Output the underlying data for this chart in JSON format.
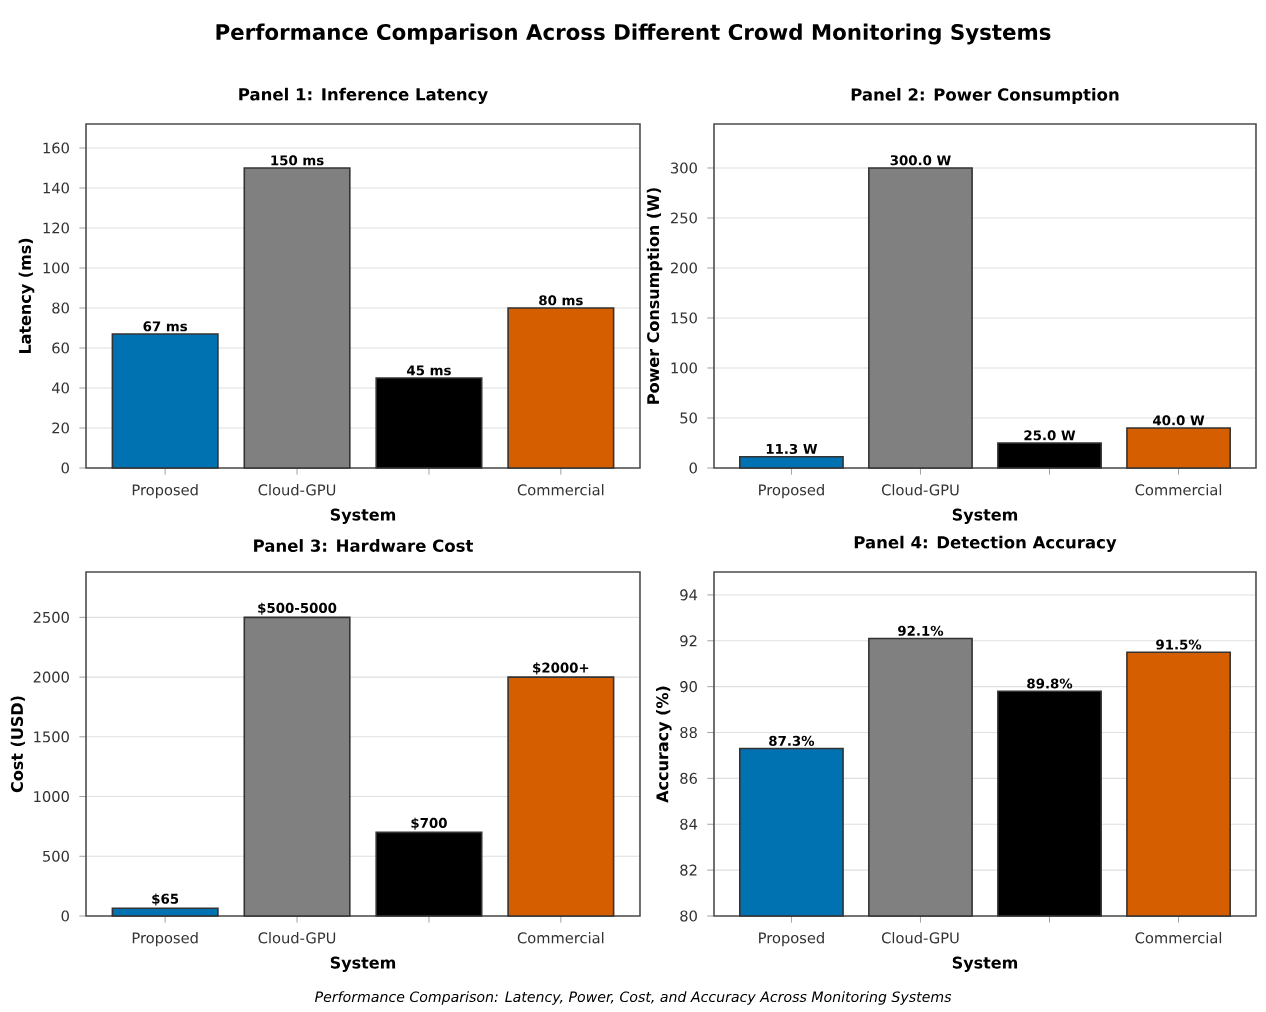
{
  "chart_data": [
    {
      "type": "bar",
      "title": "Panel 1: Inference Latency",
      "xlabel": "System",
      "ylabel": "Latency (ms)",
      "annotations": [
        "Performance Comparison Across Different Crowd Monitoring Systems"
      ],
      "categories": [
        "Proposed",
        "Cloud-GPU",
        null,
        "Commercial"
      ],
      "values": [
        67,
        150,
        45,
        80
      ],
      "colors": [
        "#0072b2",
        "#808080",
        "#000000",
        "#d55e00"
      ],
      "value_labels": [
        "67 ms",
        "150 ms",
        "45 ms",
        "80 ms"
      ],
      "ylim": [
        0,
        172
      ],
      "yticks": [
        0,
        20,
        40,
        60,
        80,
        100,
        120,
        140,
        160
      ],
      "grid": "y"
    },
    {
      "type": "bar",
      "title": "Panel 2: Power Consumption",
      "xlabel": "System",
      "ylabel": "Power Consumption (W)",
      "categories": [
        "Proposed",
        "Cloud-GPU",
        null,
        "Commercial"
      ],
      "values": [
        11.3,
        300,
        25,
        40
      ],
      "colors": [
        "#0072b2",
        "#808080",
        "#000000",
        "#d55e00"
      ],
      "value_labels": [
        "11.3 W",
        "300.0 W",
        "25.0 W",
        "40.0 W"
      ],
      "ylim": [
        0,
        344
      ],
      "yticks": [
        0,
        50,
        100,
        150,
        200,
        250,
        300
      ],
      "grid": "y"
    },
    {
      "type": "bar",
      "title": "Panel 3: Hardware Cost",
      "xlabel": "System",
      "ylabel": "Cost (USD)",
      "categories": [
        "Proposed",
        "Cloud-GPU",
        null,
        "Commercial"
      ],
      "values": [
        65,
        2500,
        700,
        2000
      ],
      "colors": [
        "#0072b2",
        "#808080",
        "#000000",
        "#d55e00"
      ],
      "value_labels": [
        "$65",
        "$500-5000",
        "$700",
        "$2000+"
      ],
      "ylim": [
        0,
        2880
      ],
      "yticks": [
        0,
        500,
        1000,
        1500,
        2000,
        2500
      ],
      "grid": "y"
    },
    {
      "type": "bar",
      "title": "Panel 4: Detection Accuracy",
      "xlabel": "System",
      "ylabel": "Accuracy (%)",
      "annotations": [
        "Performance Comparison: Latency, Power, Cost, and Accuracy Across Monitoring Systems"
      ],
      "categories": [
        "Proposed",
        "Cloud-GPU",
        null,
        "Commercial"
      ],
      "values": [
        87.3,
        92.1,
        89.8,
        91.5
      ],
      "colors": [
        "#0072b2",
        "#808080",
        "#000000",
        "#d55e00"
      ],
      "value_labels": [
        "87.3%",
        "92.1%",
        "89.8%",
        "91.5%"
      ],
      "ylim": [
        80,
        95
      ],
      "yticks": [
        80,
        82,
        84,
        86,
        88,
        90,
        92,
        94
      ],
      "grid": "y"
    }
  ]
}
